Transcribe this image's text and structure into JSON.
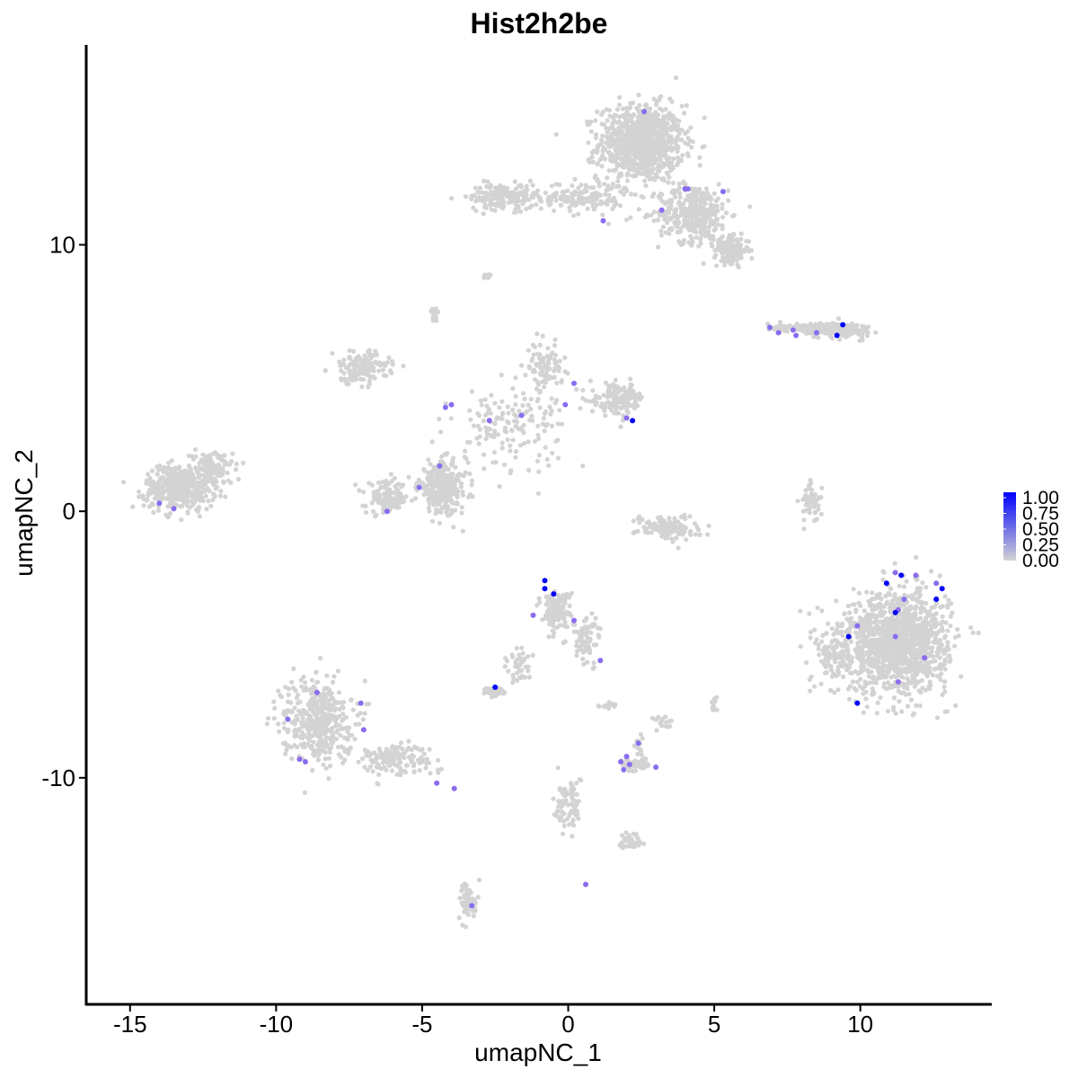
{
  "chart_data": {
    "type": "scatter",
    "title": "Hist2h2be",
    "xlabel": "umapNC_1",
    "ylabel": "umapNC_2",
    "xlim": [
      -16.5,
      14.5
    ],
    "ylim": [
      -18.5,
      17.5
    ],
    "x_ticks": [
      -15,
      -10,
      -5,
      0,
      5,
      10
    ],
    "x_tick_labels": [
      "-15",
      "-10",
      "-5",
      "0",
      "5",
      "10"
    ],
    "y_ticks": [
      -10,
      0,
      10
    ],
    "y_tick_labels": [
      "-10",
      "0",
      "10"
    ],
    "legend": {
      "position": "right",
      "labels": [
        "1.00",
        "0.75",
        "0.50",
        "0.25",
        "0.00"
      ],
      "low_color": "#d3d3d3",
      "high_color": "#0000ff"
    },
    "colors": {
      "background_points": "#d3d3d3",
      "high": "#0000ff"
    },
    "clusters": [
      {
        "cx": 2.5,
        "cy": 13.8,
        "sx": 1.2,
        "sy": 1.2,
        "n": 900
      },
      {
        "cx": 4.3,
        "cy": 11.2,
        "sx": 1.0,
        "sy": 0.9,
        "n": 350
      },
      {
        "cx": 5.6,
        "cy": 9.8,
        "sx": 0.5,
        "sy": 0.4,
        "n": 150
      },
      {
        "cx": 0.5,
        "cy": 11.8,
        "sx": 1.2,
        "sy": 0.5,
        "n": 150
      },
      {
        "cx": -2.2,
        "cy": 11.8,
        "sx": 1.0,
        "sy": 0.4,
        "n": 180
      },
      {
        "cx": 9.2,
        "cy": 6.8,
        "sx": 1.0,
        "sy": 0.25,
        "n": 160
      },
      {
        "cx": 7.8,
        "cy": 6.9,
        "sx": 0.8,
        "sy": 0.12,
        "n": 60
      },
      {
        "cx": -13.3,
        "cy": 0.9,
        "sx": 1.0,
        "sy": 0.7,
        "n": 400
      },
      {
        "cx": -12.2,
        "cy": 1.6,
        "sx": 0.6,
        "sy": 0.5,
        "n": 120
      },
      {
        "cx": -7.1,
        "cy": 5.4,
        "sx": 0.8,
        "sy": 0.5,
        "n": 140
      },
      {
        "cx": -4.3,
        "cy": 0.9,
        "sx": 0.7,
        "sy": 0.8,
        "n": 300
      },
      {
        "cx": -6.2,
        "cy": 0.5,
        "sx": 0.6,
        "sy": 0.5,
        "n": 120
      },
      {
        "cx": 1.7,
        "cy": 4.2,
        "sx": 0.8,
        "sy": 0.5,
        "n": 150
      },
      {
        "cx": -0.8,
        "cy": 5.4,
        "sx": 0.5,
        "sy": 0.7,
        "n": 90
      },
      {
        "cx": -2.0,
        "cy": 3.2,
        "sx": 1.6,
        "sy": 1.2,
        "n": 150
      },
      {
        "cx": 3.4,
        "cy": -0.6,
        "sx": 0.9,
        "sy": 0.4,
        "n": 120
      },
      {
        "cx": 8.3,
        "cy": 0.3,
        "sx": 0.3,
        "sy": 0.6,
        "n": 50
      },
      {
        "cx": 11.3,
        "cy": -4.9,
        "sx": 1.4,
        "sy": 1.6,
        "n": 1200
      },
      {
        "cx": 9.3,
        "cy": -5.3,
        "sx": 0.7,
        "sy": 1.2,
        "n": 150
      },
      {
        "cx": -8.6,
        "cy": -7.8,
        "sx": 1.0,
        "sy": 1.3,
        "n": 400
      },
      {
        "cx": -6.0,
        "cy": -9.3,
        "sx": 1.2,
        "sy": 0.5,
        "n": 150
      },
      {
        "cx": -0.4,
        "cy": -3.7,
        "sx": 0.4,
        "sy": 0.6,
        "n": 140
      },
      {
        "cx": 0.6,
        "cy": -4.8,
        "sx": 0.4,
        "sy": 0.8,
        "n": 70
      },
      {
        "cx": -2.5,
        "cy": -6.8,
        "sx": 0.3,
        "sy": 0.15,
        "n": 50
      },
      {
        "cx": -1.7,
        "cy": -5.8,
        "sx": 0.4,
        "sy": 0.6,
        "n": 40
      },
      {
        "cx": 2.3,
        "cy": -9.5,
        "sx": 0.4,
        "sy": 0.2,
        "n": 60
      },
      {
        "cx": 2.4,
        "cy": -8.8,
        "sx": 0.1,
        "sy": 0.3,
        "n": 15
      },
      {
        "cx": 0.0,
        "cy": -11.0,
        "sx": 0.4,
        "sy": 0.9,
        "n": 70
      },
      {
        "cx": 2.2,
        "cy": -12.4,
        "sx": 0.4,
        "sy": 0.3,
        "n": 40
      },
      {
        "cx": -3.4,
        "cy": -14.6,
        "sx": 0.25,
        "sy": 0.6,
        "n": 60
      },
      {
        "cx": -4.6,
        "cy": 7.4,
        "sx": 0.15,
        "sy": 0.25,
        "n": 20
      },
      {
        "cx": -2.8,
        "cy": 8.8,
        "sx": 0.15,
        "sy": 0.1,
        "n": 10
      },
      {
        "cx": 1.4,
        "cy": -7.3,
        "sx": 0.3,
        "sy": 0.08,
        "n": 15
      },
      {
        "cx": 5.0,
        "cy": -7.3,
        "sx": 0.1,
        "sy": 0.3,
        "n": 12
      },
      {
        "cx": 3.2,
        "cy": -7.9,
        "sx": 0.3,
        "sy": 0.3,
        "n": 15
      }
    ],
    "points": [
      {
        "x": 2.6,
        "y": 15.0,
        "v": 0.5
      },
      {
        "x": 4.0,
        "y": 12.1,
        "v": 0.5
      },
      {
        "x": 4.1,
        "y": 12.1,
        "v": 0.5
      },
      {
        "x": 5.3,
        "y": 12.0,
        "v": 0.5
      },
      {
        "x": 3.2,
        "y": 11.3,
        "v": 0.5
      },
      {
        "x": 1.2,
        "y": 10.9,
        "v": 0.5
      },
      {
        "x": 6.9,
        "y": 6.9,
        "v": 0.5
      },
      {
        "x": 7.2,
        "y": 6.7,
        "v": 0.5
      },
      {
        "x": 7.7,
        "y": 6.8,
        "v": 0.5
      },
      {
        "x": 7.8,
        "y": 6.6,
        "v": 0.5
      },
      {
        "x": 8.5,
        "y": 6.7,
        "v": 0.5
      },
      {
        "x": 9.4,
        "y": 7.0,
        "v": 1.0
      },
      {
        "x": 9.2,
        "y": 6.6,
        "v": 1.0
      },
      {
        "x": -4.2,
        "y": 3.9,
        "v": 0.5
      },
      {
        "x": -4.0,
        "y": 4.0,
        "v": 0.5
      },
      {
        "x": -2.7,
        "y": 3.4,
        "v": 0.5
      },
      {
        "x": -1.6,
        "y": 3.6,
        "v": 0.5
      },
      {
        "x": -0.1,
        "y": 4.0,
        "v": 0.5
      },
      {
        "x": 0.2,
        "y": 4.8,
        "v": 0.5
      },
      {
        "x": 2.0,
        "y": 3.5,
        "v": 0.5
      },
      {
        "x": 2.2,
        "y": 3.4,
        "v": 1.0
      },
      {
        "x": -4.4,
        "y": 1.7,
        "v": 0.5
      },
      {
        "x": -5.1,
        "y": 0.9,
        "v": 0.5
      },
      {
        "x": -6.2,
        "y": 0.0,
        "v": 0.5
      },
      {
        "x": -14.0,
        "y": 0.3,
        "v": 0.5
      },
      {
        "x": -13.5,
        "y": 0.1,
        "v": 0.5
      },
      {
        "x": -0.8,
        "y": -2.6,
        "v": 1.0
      },
      {
        "x": -0.8,
        "y": -2.9,
        "v": 1.0
      },
      {
        "x": -0.5,
        "y": -3.1,
        "v": 1.0
      },
      {
        "x": -1.2,
        "y": -3.9,
        "v": 0.5
      },
      {
        "x": 0.2,
        "y": -4.1,
        "v": 0.5
      },
      {
        "x": 1.1,
        "y": -5.6,
        "v": 0.5
      },
      {
        "x": -2.5,
        "y": -6.6,
        "v": 1.0
      },
      {
        "x": 11.2,
        "y": -2.3,
        "v": 0.5
      },
      {
        "x": 11.4,
        "y": -2.4,
        "v": 1.0
      },
      {
        "x": 11.9,
        "y": -2.4,
        "v": 0.5
      },
      {
        "x": 10.9,
        "y": -2.7,
        "v": 1.0
      },
      {
        "x": 12.6,
        "y": -2.7,
        "v": 0.5
      },
      {
        "x": 12.8,
        "y": -2.9,
        "v": 1.0
      },
      {
        "x": 12.6,
        "y": -3.3,
        "v": 1.0
      },
      {
        "x": 11.5,
        "y": -3.3,
        "v": 0.5
      },
      {
        "x": 11.3,
        "y": -3.7,
        "v": 0.5
      },
      {
        "x": 11.2,
        "y": -3.8,
        "v": 1.0
      },
      {
        "x": 9.9,
        "y": -4.3,
        "v": 0.5
      },
      {
        "x": 9.6,
        "y": -4.7,
        "v": 1.0
      },
      {
        "x": 11.2,
        "y": -4.7,
        "v": 0.5
      },
      {
        "x": 12.2,
        "y": -5.5,
        "v": 0.5
      },
      {
        "x": 11.3,
        "y": -6.4,
        "v": 0.5
      },
      {
        "x": 9.9,
        "y": -7.2,
        "v": 1.0
      },
      {
        "x": -8.6,
        "y": -6.8,
        "v": 0.5
      },
      {
        "x": -7.1,
        "y": -7.2,
        "v": 0.5
      },
      {
        "x": -9.6,
        "y": -7.8,
        "v": 0.5
      },
      {
        "x": -7.0,
        "y": -8.2,
        "v": 0.5
      },
      {
        "x": -9.2,
        "y": -9.3,
        "v": 0.5
      },
      {
        "x": -9.0,
        "y": -9.4,
        "v": 0.5
      },
      {
        "x": -4.5,
        "y": -10.2,
        "v": 0.5
      },
      {
        "x": -3.9,
        "y": -10.4,
        "v": 0.5
      },
      {
        "x": 1.8,
        "y": -9.4,
        "v": 0.5
      },
      {
        "x": 2.0,
        "y": -9.2,
        "v": 0.5
      },
      {
        "x": 2.1,
        "y": -9.5,
        "v": 0.5
      },
      {
        "x": 1.9,
        "y": -9.7,
        "v": 0.5
      },
      {
        "x": 2.4,
        "y": -8.7,
        "v": 0.5
      },
      {
        "x": 3.0,
        "y": -9.6,
        "v": 0.5
      },
      {
        "x": 0.6,
        "y": -14.0,
        "v": 0.5
      },
      {
        "x": -3.3,
        "y": -14.8,
        "v": 0.5
      }
    ]
  }
}
